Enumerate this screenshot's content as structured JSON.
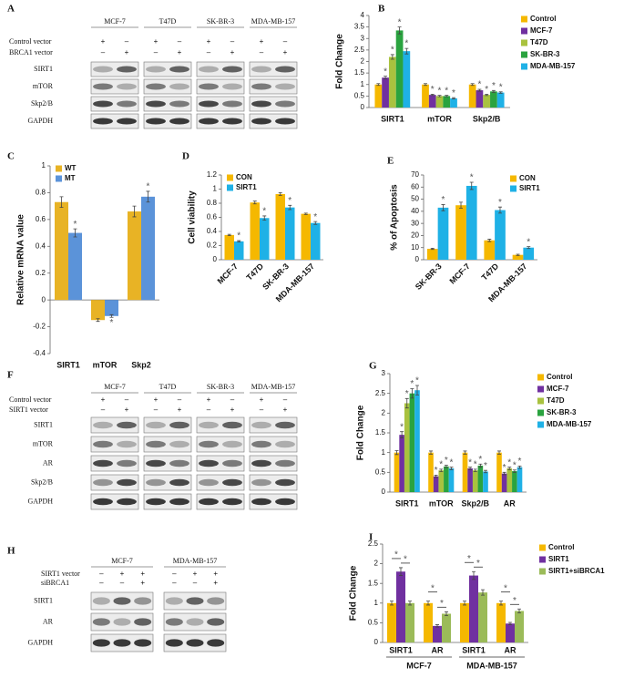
{
  "blots": [
    {
      "panel": "A",
      "columns": [
        "MCF-7",
        "T47D",
        "SK-BR-3",
        "MDA-MB-157"
      ],
      "conditions": [
        {
          "label": "Control vector",
          "signs": [
            "+",
            "–",
            "+",
            "–",
            "+",
            "–",
            "+",
            "–"
          ]
        },
        {
          "label": "BRCA1 vector",
          "signs": [
            "–",
            "+",
            "–",
            "+",
            "–",
            "+",
            "–",
            "+"
          ]
        }
      ],
      "bands": [
        "SIRT1",
        "mTOR",
        "Skp2/B",
        "GAPDH"
      ]
    },
    {
      "panel": "F",
      "columns": [
        "MCF-7",
        "T47D",
        "SK-BR-3",
        "MDA-MB-157"
      ],
      "conditions": [
        {
          "label": "Control vector",
          "signs": [
            "+",
            "–",
            "+",
            "–",
            "+",
            "–",
            "+",
            "–"
          ]
        },
        {
          "label": "SIRT1 vector",
          "signs": [
            "–",
            "+",
            "–",
            "+",
            "–",
            "+",
            "–",
            "+"
          ]
        }
      ],
      "bands": [
        "SIRT1",
        "mTOR",
        "AR",
        "Skp2/B",
        "GAPDH"
      ]
    },
    {
      "panel": "H",
      "columns": [
        "MCF-7",
        "MDA-MB-157"
      ],
      "conditions": [
        {
          "label": "SIRT1 vector",
          "signs": [
            "–",
            "+",
            "+",
            "–",
            "+",
            "+"
          ]
        },
        {
          "label": "siBRCA1",
          "signs": [
            "–",
            "–",
            "+",
            "–",
            "–",
            "+"
          ]
        }
      ],
      "bands": [
        "SIRT1",
        "AR",
        "GAPDH"
      ]
    }
  ],
  "chart_data": [
    {
      "panel": "B",
      "type": "bar",
      "y_label": "Fold Change",
      "categories": [
        "SIRT1",
        "mTOR",
        "Skp2/B"
      ],
      "ylim": [
        0,
        4
      ],
      "yticks": [
        0,
        0.5,
        1,
        1.5,
        2,
        2.5,
        3,
        3.5,
        4
      ],
      "legend": "right",
      "series": [
        {
          "name": "Control",
          "color": "#f5b800",
          "values": [
            1,
            1,
            1
          ],
          "errors": [
            0.04,
            0.04,
            0.04
          ]
        },
        {
          "name": "MCF-7",
          "color": "#7030a0",
          "values": [
            1.3,
            0.55,
            0.75
          ],
          "errors": [
            0.06,
            0.03,
            0.04
          ],
          "significance": [
            "*",
            "*",
            "*"
          ]
        },
        {
          "name": "T47D",
          "color": "#a9c23f",
          "values": [
            2.2,
            0.5,
            0.55
          ],
          "errors": [
            0.1,
            0.03,
            0.03
          ],
          "significance": [
            "*",
            "*",
            "*"
          ]
        },
        {
          "name": "SK-BR-3",
          "color": "#2aa33f",
          "values": [
            3.35,
            0.5,
            0.7
          ],
          "errors": [
            0.15,
            0.03,
            0.04
          ],
          "significance": [
            "*",
            "*",
            "*"
          ]
        },
        {
          "name": "MDA-MB-157",
          "color": "#1fb1e6",
          "values": [
            2.45,
            0.4,
            0.65
          ],
          "errors": [
            0.12,
            0.03,
            0.03
          ],
          "significance": [
            "*",
            "*",
            "*"
          ]
        }
      ]
    },
    {
      "panel": "C",
      "type": "bar",
      "y_label": "Relative mRNA value",
      "categories": [
        "SIRT1",
        "mTOR",
        "Skp2"
      ],
      "ylim": [
        -0.4,
        1
      ],
      "yticks": [
        -0.4,
        -0.2,
        0,
        0.2,
        0.4,
        0.6,
        0.8,
        1
      ],
      "legend": "upper left",
      "series": [
        {
          "name": "WT",
          "color": "#e8b325",
          "values": [
            0.73,
            -0.15,
            0.66
          ],
          "errors": [
            0.04,
            0.01,
            0.04
          ]
        },
        {
          "name": "MT",
          "color": "#5b93d9",
          "values": [
            0.5,
            -0.12,
            0.77
          ],
          "errors": [
            0.03,
            0.01,
            0.04
          ],
          "significance": [
            "*",
            "*",
            "*"
          ]
        }
      ]
    },
    {
      "panel": "D",
      "type": "bar",
      "y_label": "Cell viability",
      "categories": [
        "MCF-7",
        "T47D",
        "SK-BR-3",
        "MDA-MB-157"
      ],
      "ylim": [
        0,
        1.2
      ],
      "yticks": [
        0,
        0.2,
        0.4,
        0.6,
        0.8,
        1,
        1.2
      ],
      "legend": "upper left",
      "rotate_labels": true,
      "series": [
        {
          "name": "CON",
          "color": "#f5b800",
          "values": [
            0.35,
            0.81,
            0.93,
            0.65
          ],
          "errors": [
            0.01,
            0.02,
            0.02,
            0.01
          ]
        },
        {
          "name": "SIRT1",
          "color": "#1fb1e6",
          "values": [
            0.26,
            0.59,
            0.74,
            0.52
          ],
          "errors": [
            0.01,
            0.03,
            0.03,
            0.02
          ],
          "significance": [
            "*",
            "*",
            "*",
            "*"
          ]
        }
      ]
    },
    {
      "panel": "E",
      "type": "bar",
      "y_label": "% of Apoptosis",
      "categories": [
        "SK-BR-3",
        "MCF-7",
        "T47D",
        "MDA-MB-157"
      ],
      "ylim": [
        0,
        70
      ],
      "yticks": [
        0,
        10,
        20,
        30,
        40,
        50,
        60,
        70
      ],
      "legend": "upper right",
      "rotate_labels": true,
      "series": [
        {
          "name": "CON",
          "color": "#f5b800",
          "values": [
            9,
            45,
            16,
            4
          ],
          "errors": [
            0.5,
            2.5,
            1,
            0.5
          ]
        },
        {
          "name": "SIRT1",
          "color": "#1fb1e6",
          "values": [
            43,
            61,
            41,
            10
          ],
          "errors": [
            2.5,
            3,
            2.5,
            0.8
          ],
          "significance": [
            "*",
            "*",
            "*",
            "*"
          ]
        }
      ]
    },
    {
      "panel": "G",
      "type": "bar",
      "y_label": "Fold Change",
      "categories": [
        "SIRT1",
        "mTOR",
        "Skp2/B",
        "AR"
      ],
      "ylim": [
        0,
        3
      ],
      "yticks": [
        0,
        0.5,
        1,
        1.5,
        2,
        2.5,
        3
      ],
      "legend": "right",
      "series": [
        {
          "name": "Control",
          "color": "#f5b800",
          "values": [
            1,
            1,
            1,
            1
          ],
          "errors": [
            0.05,
            0.04,
            0.04,
            0.04
          ]
        },
        {
          "name": "MCF-7",
          "color": "#7030a0",
          "values": [
            1.45,
            0.4,
            0.6,
            0.47
          ],
          "errors": [
            0.08,
            0.03,
            0.03,
            0.03
          ],
          "significance": [
            "*",
            "*",
            "*",
            "*"
          ]
        },
        {
          "name": "T47D",
          "color": "#a9c23f",
          "values": [
            2.25,
            0.55,
            0.55,
            0.6
          ],
          "errors": [
            0.12,
            0.03,
            0.03,
            0.03
          ],
          "significance": [
            "*",
            "*",
            "*",
            "*"
          ]
        },
        {
          "name": "SK-BR-3",
          "color": "#2aa33f",
          "values": [
            2.5,
            0.65,
            0.67,
            0.53
          ],
          "errors": [
            0.12,
            0.03,
            0.04,
            0.03
          ],
          "significance": [
            "*",
            "*",
            "*",
            "*"
          ]
        },
        {
          "name": "MDA-MB-157",
          "color": "#1fb1e6",
          "values": [
            2.58,
            0.6,
            0.52,
            0.63
          ],
          "errors": [
            0.12,
            0.03,
            0.03,
            0.03
          ],
          "significance": [
            "*",
            "*",
            "*",
            "*"
          ]
        }
      ]
    },
    {
      "panel": "I",
      "type": "bar",
      "y_label": "Fold Change",
      "categories": [
        "SIRT1",
        "AR",
        "SIRT1",
        "AR"
      ],
      "groups": [
        "MCF-7",
        "MDA-MB-157"
      ],
      "brackets": true,
      "ylim": [
        0,
        2.5
      ],
      "yticks": [
        0,
        0.5,
        1,
        1.5,
        2,
        2.5
      ],
      "legend": "right",
      "series": [
        {
          "name": "Control",
          "color": "#f5b800",
          "values": [
            1,
            1,
            1,
            1
          ],
          "errors": [
            0.05,
            0.05,
            0.05,
            0.05
          ]
        },
        {
          "name": "SIRT1",
          "color": "#7030a0",
          "values": [
            1.8,
            0.42,
            1.7,
            0.48
          ],
          "errors": [
            0.1,
            0.03,
            0.1,
            0.03
          ],
          "significance": [
            "*",
            "*",
            "*",
            "*"
          ]
        },
        {
          "name": "SIRT1+siBRCA1",
          "color": "#9bbb59",
          "values": [
            1.0,
            0.73,
            1.27,
            0.8
          ],
          "errors": [
            0.05,
            0.05,
            0.07,
            0.05
          ],
          "significance": [
            "*",
            "*",
            "*",
            "*"
          ]
        }
      ]
    }
  ]
}
